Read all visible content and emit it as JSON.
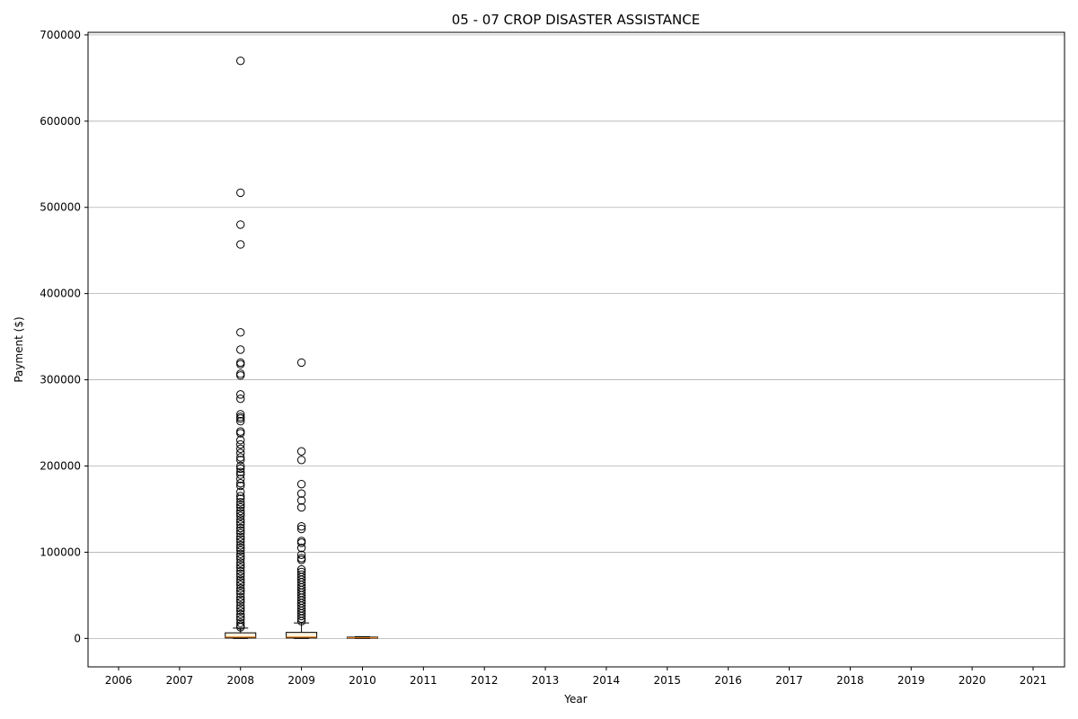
{
  "chart_data": {
    "type": "box",
    "title": "05 - 07 CROP DISASTER ASSISTANCE",
    "xlabel": "Year",
    "ylabel": "Payment ($)",
    "ylim": [
      -33000,
      703000
    ],
    "yticks": [
      0,
      100000,
      200000,
      300000,
      400000,
      500000,
      600000,
      700000
    ],
    "grid": "y",
    "categories": [
      "2006",
      "2007",
      "2008",
      "2009",
      "2010",
      "2011",
      "2012",
      "2013",
      "2014",
      "2015",
      "2016",
      "2017",
      "2018",
      "2019",
      "2020",
      "2021"
    ],
    "boxes": [
      {
        "category": "2008",
        "q1": 500,
        "median": 1500,
        "q3": 6500,
        "whisker_low": 0,
        "whisker_high": 12000,
        "outliers": [
          670000,
          517000,
          480000,
          457000,
          355000,
          335000,
          320000,
          318000,
          307000,
          305000,
          283000,
          278000,
          260000,
          257000,
          255000,
          252000,
          240000,
          238000,
          230000,
          225000,
          220000,
          215000,
          210000,
          207000,
          200000,
          197000,
          193000,
          190000,
          185000,
          180000,
          177000,
          170000,
          165000,
          162000,
          158000,
          155000,
          152000,
          148000,
          145000,
          142000,
          138000,
          135000,
          132000,
          128000,
          125000,
          122000,
          118000,
          115000,
          112000,
          108000,
          105000,
          102000,
          98000,
          95000,
          92000,
          88000,
          85000,
          82000,
          78000,
          75000,
          72000,
          68000,
          65000,
          62000,
          58000,
          55000,
          52000,
          48000,
          45000,
          42000,
          38000,
          35000,
          32000,
          28000,
          25000,
          22000,
          18000,
          15000,
          13000
        ]
      },
      {
        "category": "2009",
        "q1": 500,
        "median": 1500,
        "q3": 7000,
        "whisker_low": 0,
        "whisker_high": 18000,
        "outliers": [
          320000,
          217000,
          207000,
          179000,
          168000,
          160000,
          152000,
          130000,
          127000,
          113000,
          111000,
          105000,
          97000,
          93000,
          91000,
          80000,
          77000,
          74000,
          71000,
          68000,
          65000,
          62000,
          59000,
          56000,
          53000,
          50000,
          47000,
          44000,
          41000,
          38000,
          35000,
          32000,
          29000,
          26000,
          23000,
          20000
        ]
      },
      {
        "category": "2010",
        "q1": 300,
        "median": 800,
        "q3": 1500,
        "whisker_low": 0,
        "whisker_high": 2000,
        "outliers": []
      }
    ],
    "colors": {
      "box_fill": "#fdf2dc",
      "median": "#e07a1f",
      "axes": "#000000",
      "grid": "#b0b0b0"
    }
  }
}
